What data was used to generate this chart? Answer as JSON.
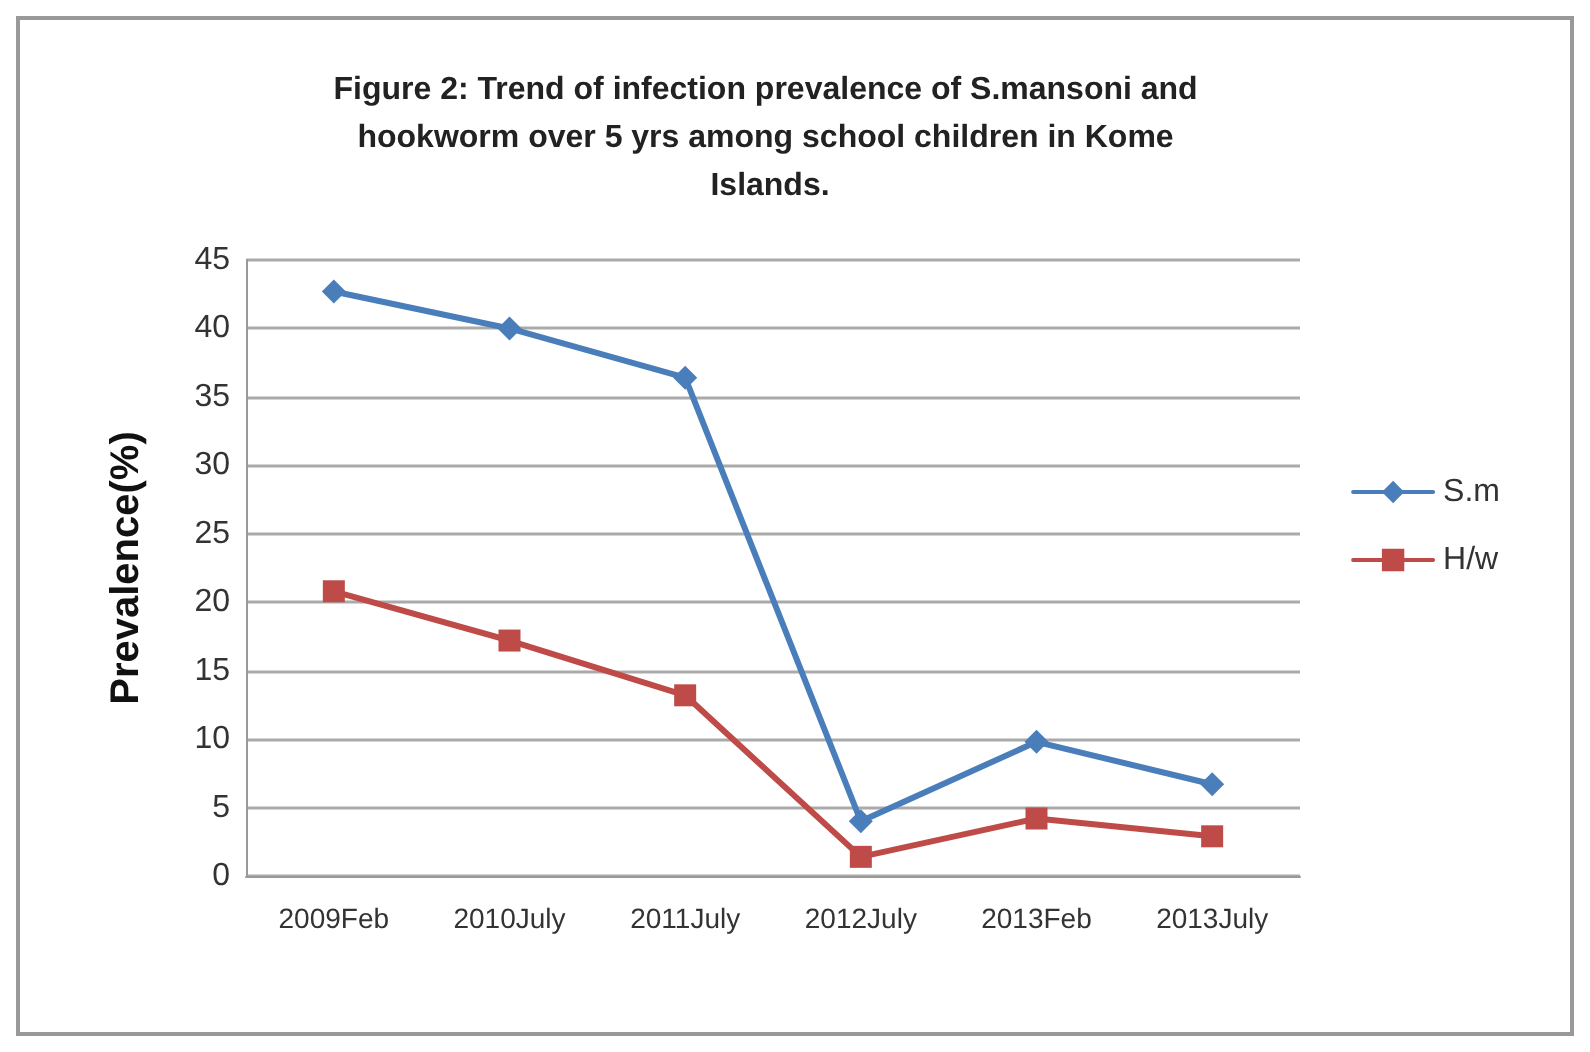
{
  "chart_data": {
    "type": "line",
    "title": "Figure 2: Trend of infection prevalence of S.mansoni and hookworm over 5 yrs among school children in Kome Islands.",
    "ylabel": "Prevalence(%)",
    "categories": [
      "2009Feb",
      "2010July",
      "2011July",
      "2012July",
      "2013Feb",
      "2013July"
    ],
    "series": [
      {
        "name": "S.m",
        "color": "#4a7ebb",
        "marker": "diamond",
        "values": [
          42.7,
          40,
          36.4,
          4,
          9.8,
          6.7
        ]
      },
      {
        "name": "H/w",
        "color": "#be4b48",
        "marker": "square",
        "values": [
          20.8,
          17.2,
          13.2,
          1.4,
          4.2,
          2.9
        ]
      }
    ],
    "ylim": [
      0,
      45
    ],
    "yticks": [
      0,
      5,
      10,
      15,
      20,
      25,
      30,
      35,
      40,
      45
    ],
    "grid": "y",
    "legend": "right",
    "line_style": "solid"
  }
}
